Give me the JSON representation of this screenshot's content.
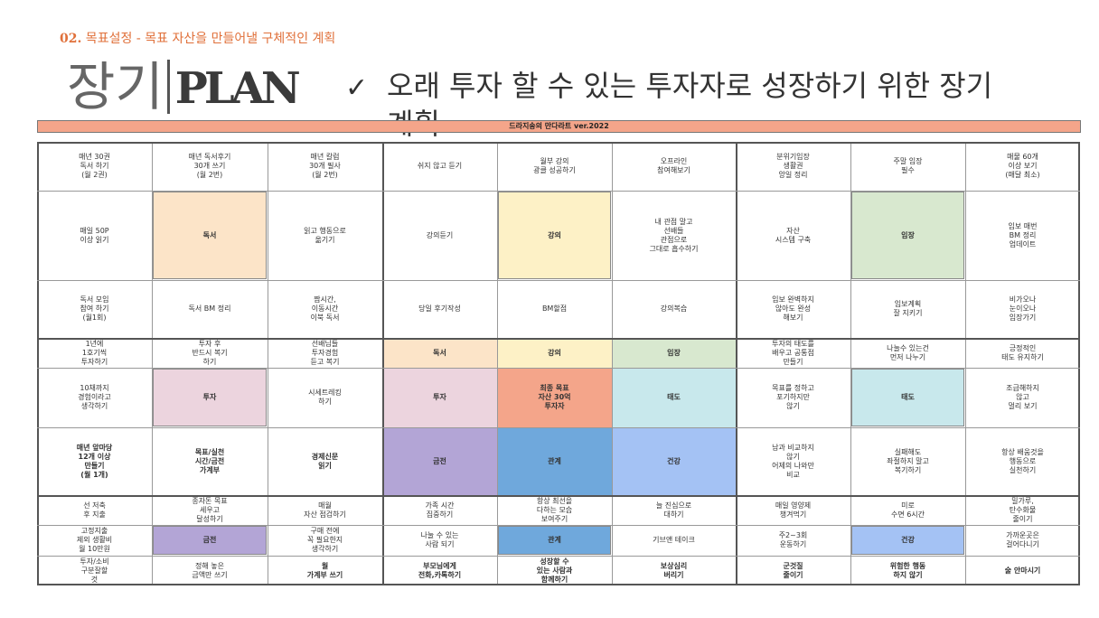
{
  "subtitle": {
    "number": "02.",
    "text": " 목표설정 - 목표 자산을 만들어낼 구체적인 계획"
  },
  "title": {
    "korean": "장기",
    "latin": "PLAN"
  },
  "check_icon": "✓",
  "tagline": "오래 투자 할 수 있는 투자자로 성장하기 위한 장기 계획",
  "banner": "드라지송의 만다라트 ver.2022",
  "colors": {
    "orange": "#fce4c8",
    "yellow": "#fdf1c6",
    "green": "#d8e8cf",
    "pink": "#ecd4de",
    "center": "#f4a58a",
    "teal": "#c8e8ec",
    "purple": "#b3a5d6",
    "blue": "#6fa8dc",
    "lightblue": "#a4c2f4"
  },
  "rows": [
    [
      "매년 30권\n독서 하기\n(월 2권)",
      "매년 독서후기\n30개 쓰기\n(월 2번)",
      "매년 칼럼\n30개 필사\n(월 2번)",
      "쉬지 않고 듣기",
      "월부 강의\n광클 성공하기",
      "오프라인\n참여해보기",
      "분위기임장\n생활권\n앙일 정리",
      "주말 임장\n필수",
      "매물 60개\n이상 보기\n(매달 최소)"
    ],
    [
      "매일 50P\n이상 읽기",
      "독서",
      "읽고 행동으로\n옮기기",
      "강의듣기",
      "강의",
      "내 관점 말고\n선배들\n관점으로\n그대로 흡수하기",
      "자산\n시스템 구축",
      "임장",
      "임보 매번\nBM 정리\n업데이트"
    ],
    [
      "독서 모임\n참여 하기\n(월1회)",
      "독서 BM 정리",
      "짬시간,\n이동시간\n이북 독서",
      "당일 후기작성",
      "BM할점",
      "강의복습",
      "임보 완벽하지\n않아도 완성\n해보기",
      "임보계획\n잘 지키기",
      "비가오나\n눈이오나\n임장가기"
    ],
    [
      "1년에\n1호기씩\n투자하기",
      "투자 후\n반드시 복기\n하기",
      "선배님들\n투자경험\n듣고 복기",
      "독서",
      "강의",
      "임장",
      "투자의 태도를\n배우고 공통점\n만들기",
      "나눌수 있는건\n먼저 나누기",
      "긍정적인\n태도 유지하기"
    ],
    [
      "10채까지\n경험이라고\n생각하기",
      "투자",
      "시세트레킹\n하기",
      "투자",
      "최종 목표\n자산 30억\n투자자",
      "태도",
      "목표를 정하고\n포기하지만\n않기",
      "태도",
      "조급해하지\n않고\n멀리 보기"
    ],
    [
      "매년 앞마당\n12개 이상\n만들기\n(월 1개)",
      "목표/실천\n시간/금전\n가계부",
      "경제신문\n읽기",
      "금전",
      "관계",
      "건강",
      "남과 비교하지\n않기\n어제의 나와만\n비교",
      "실패해도\n좌절하지 말고\n복기하기",
      "항상 배움것을\n행동으로\n실천하기"
    ],
    [
      "선 저축\n후 지출",
      "종자돈 목표\n세우고\n달성하기",
      "매월\n자산 점검하기",
      "가족 시간\n집중하기",
      "항상 최선을\n다하는 모습\n보여주기",
      "늘 진심으로\n대하기",
      "매일 영양제\n챙겨먹기",
      "미로\n수면 6시간",
      "밀가루,\n탄수화물\n줄이기"
    ],
    [
      "고정지출\n제외 생활비\n월 10만원",
      "금전",
      "구매 전에\n꼭 필요한지\n생각하기",
      "나눌 수 있는\n사람 되기",
      "관계",
      "기브앤 테이크",
      "주2~3회\n운동하기",
      "건강",
      "가까운곳은\n걸어다니기"
    ],
    [
      "투자/소비\n구분잘할\n것",
      "정해 놓은\n금액만 쓰기",
      "월\n가계부 쓰기",
      "부모님에게\n전화,카톡하기",
      "성장할 수\n있는 사람과\n함께하기",
      "보상심리\n버리기",
      "군것질\n줄이기",
      "위험한 행동\n하지 않기",
      "술 안마시기"
    ]
  ]
}
